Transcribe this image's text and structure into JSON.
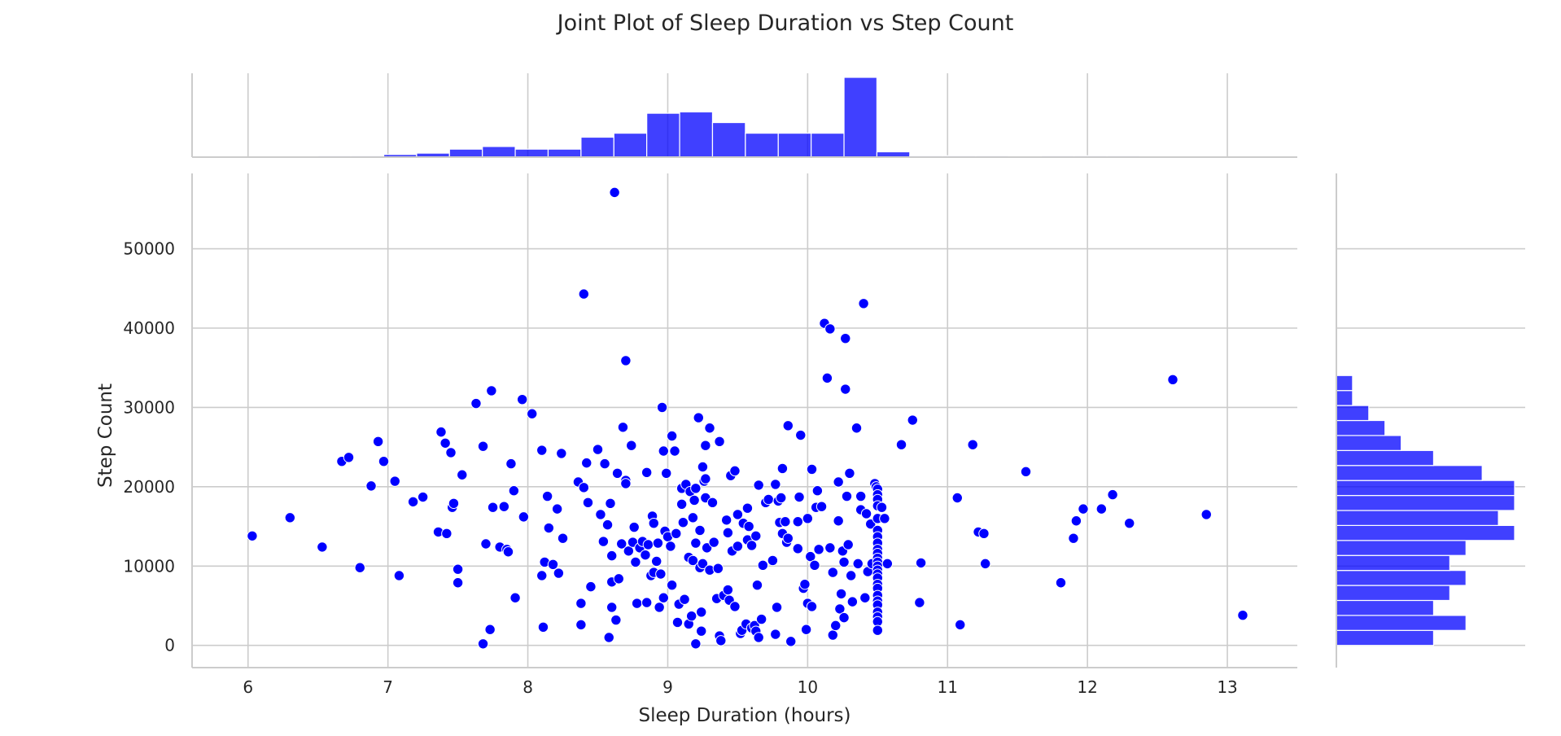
{
  "chart_data": {
    "type": "scatter",
    "title": "Joint Plot of Sleep Duration vs Step Count",
    "xlabel": "Sleep Duration (hours)",
    "ylabel": "Step Count",
    "xlim": [
      5.6,
      13.5
    ],
    "ylim": [
      -2800,
      59500
    ],
    "x_ticks": [
      6,
      7,
      8,
      9,
      10,
      11,
      12,
      13
    ],
    "y_ticks": [
      0,
      10000,
      20000,
      30000,
      40000,
      50000
    ],
    "grid": true,
    "color": "#0000ff",
    "marginal_x_histogram": {
      "bin_start": 6.5,
      "bin_width": 0.235,
      "counts": [
        1,
        1,
        2,
        3,
        6,
        8,
        6,
        6,
        15,
        18,
        33,
        34,
        26,
        18,
        18,
        18,
        60,
        4,
        1,
        1,
        1,
        0,
        1,
        1,
        1
      ]
    },
    "marginal_y_histogram": {
      "bin_start": 0,
      "bin_width": 1890,
      "counts": [
        6,
        8,
        6,
        7,
        8,
        7,
        8,
        11,
        10,
        11,
        11,
        9,
        6,
        4,
        3,
        2,
        1,
        1,
        0,
        0,
        0,
        0,
        0,
        0,
        0,
        0,
        0,
        0,
        0,
        0
      ]
    },
    "points": [
      [
        6.03,
        13800
      ],
      [
        6.3,
        16100
      ],
      [
        6.53,
        12400
      ],
      [
        6.67,
        23200
      ],
      [
        6.72,
        23700
      ],
      [
        6.8,
        9800
      ],
      [
        6.88,
        20100
      ],
      [
        6.93,
        25700
      ],
      [
        6.97,
        23200
      ],
      [
        7.05,
        20700
      ],
      [
        7.08,
        8800
      ],
      [
        7.18,
        18100
      ],
      [
        7.25,
        18700
      ],
      [
        7.36,
        14300
      ],
      [
        7.38,
        26900
      ],
      [
        7.41,
        25500
      ],
      [
        7.42,
        14100
      ],
      [
        7.45,
        24300
      ],
      [
        7.46,
        17400
      ],
      [
        7.47,
        17900
      ],
      [
        7.5,
        9600
      ],
      [
        7.5,
        7900
      ],
      [
        7.53,
        21500
      ],
      [
        7.63,
        30500
      ],
      [
        7.68,
        25100
      ],
      [
        7.68,
        200
      ],
      [
        7.7,
        12800
      ],
      [
        7.73,
        2000
      ],
      [
        7.74,
        32100
      ],
      [
        7.75,
        17400
      ],
      [
        7.8,
        12400
      ],
      [
        7.83,
        17500
      ],
      [
        7.85,
        12100
      ],
      [
        7.86,
        11800
      ],
      [
        7.88,
        22900
      ],
      [
        7.9,
        19500
      ],
      [
        7.91,
        6000
      ],
      [
        7.96,
        31000
      ],
      [
        7.97,
        16200
      ],
      [
        8.03,
        29200
      ],
      [
        8.1,
        24600
      ],
      [
        8.1,
        8800
      ],
      [
        8.11,
        2300
      ],
      [
        8.12,
        10500
      ],
      [
        8.14,
        18800
      ],
      [
        8.15,
        14800
      ],
      [
        8.18,
        10200
      ],
      [
        8.21,
        17200
      ],
      [
        8.22,
        9100
      ],
      [
        8.24,
        24200
      ],
      [
        8.25,
        13500
      ],
      [
        8.36,
        20600
      ],
      [
        8.38,
        5300
      ],
      [
        8.38,
        2600
      ],
      [
        8.4,
        19900
      ],
      [
        8.4,
        44300
      ],
      [
        8.42,
        23000
      ],
      [
        8.43,
        18000
      ],
      [
        8.45,
        7400
      ],
      [
        8.5,
        24700
      ],
      [
        8.52,
        16500
      ],
      [
        8.54,
        13100
      ],
      [
        8.55,
        22900
      ],
      [
        8.57,
        15200
      ],
      [
        8.58,
        1000
      ],
      [
        8.59,
        17900
      ],
      [
        8.6,
        11300
      ],
      [
        8.62,
        57100
      ],
      [
        8.6,
        4800
      ],
      [
        8.6,
        8000
      ],
      [
        8.63,
        3200
      ],
      [
        8.64,
        21700
      ],
      [
        8.65,
        8400
      ],
      [
        8.67,
        12800
      ],
      [
        8.68,
        27500
      ],
      [
        8.7,
        20800
      ],
      [
        8.7,
        20400
      ],
      [
        8.7,
        35900
      ],
      [
        8.72,
        11900
      ],
      [
        8.74,
        25200
      ],
      [
        8.75,
        13000
      ],
      [
        8.76,
        14900
      ],
      [
        8.77,
        10500
      ],
      [
        8.78,
        5300
      ],
      [
        8.8,
        12300
      ],
      [
        8.82,
        13100
      ],
      [
        8.84,
        11400
      ],
      [
        8.85,
        21800
      ],
      [
        8.85,
        5400
      ],
      [
        8.86,
        12700
      ],
      [
        8.88,
        8800
      ],
      [
        8.89,
        16300
      ],
      [
        8.9,
        9200
      ],
      [
        8.9,
        15400
      ],
      [
        8.92,
        10600
      ],
      [
        8.93,
        12900
      ],
      [
        8.94,
        4800
      ],
      [
        8.95,
        9000
      ],
      [
        8.96,
        30000
      ],
      [
        8.97,
        6000
      ],
      [
        8.97,
        24500
      ],
      [
        8.98,
        14400
      ],
      [
        8.99,
        21700
      ],
      [
        9.0,
        13700
      ],
      [
        9.02,
        12500
      ],
      [
        9.03,
        7600
      ],
      [
        9.03,
        26400
      ],
      [
        9.05,
        24500
      ],
      [
        9.06,
        14100
      ],
      [
        9.07,
        2900
      ],
      [
        9.08,
        5200
      ],
      [
        9.1,
        19800
      ],
      [
        9.1,
        17800
      ],
      [
        9.11,
        15500
      ],
      [
        9.12,
        5800
      ],
      [
        9.13,
        20300
      ],
      [
        9.15,
        2700
      ],
      [
        9.15,
        11100
      ],
      [
        9.16,
        19400
      ],
      [
        9.17,
        3700
      ],
      [
        9.18,
        10700
      ],
      [
        9.18,
        16100
      ],
      [
        9.19,
        18300
      ],
      [
        9.2,
        12900
      ],
      [
        9.2,
        19800
      ],
      [
        9.2,
        200
      ],
      [
        9.22,
        28700
      ],
      [
        9.23,
        14500
      ],
      [
        9.23,
        9800
      ],
      [
        9.24,
        4200
      ],
      [
        9.24,
        1800
      ],
      [
        9.25,
        10300
      ],
      [
        9.25,
        22500
      ],
      [
        9.26,
        20700
      ],
      [
        9.27,
        18600
      ],
      [
        9.27,
        21000
      ],
      [
        9.27,
        25200
      ],
      [
        9.28,
        12300
      ],
      [
        9.3,
        27400
      ],
      [
        9.3,
        9500
      ],
      [
        9.32,
        18000
      ],
      [
        9.33,
        13000
      ],
      [
        9.35,
        5900
      ],
      [
        9.36,
        9700
      ],
      [
        9.37,
        25700
      ],
      [
        9.37,
        1200
      ],
      [
        9.38,
        600
      ],
      [
        9.4,
        6300
      ],
      [
        9.42,
        15800
      ],
      [
        9.43,
        7000
      ],
      [
        9.43,
        14200
      ],
      [
        9.44,
        5700
      ],
      [
        9.45,
        21400
      ],
      [
        9.46,
        11900
      ],
      [
        9.48,
        4900
      ],
      [
        9.48,
        22000
      ],
      [
        9.5,
        16500
      ],
      [
        9.5,
        12500
      ],
      [
        9.52,
        1500
      ],
      [
        9.53,
        1900
      ],
      [
        9.54,
        15400
      ],
      [
        9.56,
        2700
      ],
      [
        9.57,
        13300
      ],
      [
        9.57,
        17300
      ],
      [
        9.58,
        15000
      ],
      [
        9.6,
        2200
      ],
      [
        9.6,
        12600
      ],
      [
        9.62,
        2500
      ],
      [
        9.63,
        1800
      ],
      [
        9.63,
        13800
      ],
      [
        9.64,
        7600
      ],
      [
        9.65,
        20200
      ],
      [
        9.65,
        1000
      ],
      [
        9.67,
        3300
      ],
      [
        9.68,
        10100
      ],
      [
        9.7,
        18000
      ],
      [
        9.72,
        18400
      ],
      [
        9.75,
        10700
      ],
      [
        9.77,
        1400
      ],
      [
        9.77,
        20300
      ],
      [
        9.78,
        4800
      ],
      [
        9.79,
        18200
      ],
      [
        9.8,
        15500
      ],
      [
        9.81,
        18600
      ],
      [
        9.82,
        22300
      ],
      [
        9.82,
        14100
      ],
      [
        9.84,
        15600
      ],
      [
        9.85,
        13000
      ],
      [
        9.86,
        27700
      ],
      [
        9.86,
        13500
      ],
      [
        9.88,
        500
      ],
      [
        9.93,
        15600
      ],
      [
        9.93,
        12200
      ],
      [
        9.94,
        18700
      ],
      [
        9.95,
        26500
      ],
      [
        9.97,
        7200
      ],
      [
        9.98,
        7700
      ],
      [
        9.99,
        2000
      ],
      [
        10.0,
        16000
      ],
      [
        10.0,
        5300
      ],
      [
        10.02,
        11200
      ],
      [
        10.03,
        22200
      ],
      [
        10.03,
        4900
      ],
      [
        10.05,
        10100
      ],
      [
        10.06,
        17400
      ],
      [
        10.07,
        19500
      ],
      [
        10.08,
        12100
      ],
      [
        10.1,
        17500
      ],
      [
        10.12,
        40600
      ],
      [
        10.14,
        33700
      ],
      [
        10.16,
        39900
      ],
      [
        10.16,
        12300
      ],
      [
        10.18,
        1300
      ],
      [
        10.18,
        9200
      ],
      [
        10.2,
        2500
      ],
      [
        10.22,
        15700
      ],
      [
        10.22,
        20600
      ],
      [
        10.23,
        4600
      ],
      [
        10.24,
        6500
      ],
      [
        10.25,
        11900
      ],
      [
        10.26,
        10500
      ],
      [
        10.26,
        3500
      ],
      [
        10.27,
        32300
      ],
      [
        10.27,
        38700
      ],
      [
        10.28,
        18800
      ],
      [
        10.29,
        12700
      ],
      [
        10.3,
        21700
      ],
      [
        10.31,
        8800
      ],
      [
        10.32,
        5500
      ],
      [
        10.35,
        27400
      ],
      [
        10.36,
        10300
      ],
      [
        10.38,
        18800
      ],
      [
        10.38,
        17100
      ],
      [
        10.4,
        43100
      ],
      [
        10.41,
        6000
      ],
      [
        10.42,
        16600
      ],
      [
        10.43,
        9300
      ],
      [
        10.45,
        15300
      ],
      [
        10.46,
        10300
      ],
      [
        10.48,
        20400
      ],
      [
        10.49,
        20000
      ],
      [
        10.5,
        19700
      ],
      [
        10.5,
        19000
      ],
      [
        10.5,
        18400
      ],
      [
        10.5,
        17600
      ],
      [
        10.5,
        16000
      ],
      [
        10.5,
        14500
      ],
      [
        10.5,
        13700
      ],
      [
        10.5,
        12900
      ],
      [
        10.5,
        12100
      ],
      [
        10.5,
        11600
      ],
      [
        10.5,
        11000
      ],
      [
        10.5,
        10500
      ],
      [
        10.5,
        10000
      ],
      [
        10.5,
        9500
      ],
      [
        10.5,
        9000
      ],
      [
        10.5,
        8500
      ],
      [
        10.5,
        7700
      ],
      [
        10.5,
        7200
      ],
      [
        10.5,
        6300
      ],
      [
        10.5,
        5600
      ],
      [
        10.5,
        5100
      ],
      [
        10.5,
        4200
      ],
      [
        10.5,
        3600
      ],
      [
        10.5,
        3000
      ],
      [
        10.5,
        1900
      ],
      [
        10.53,
        17400
      ],
      [
        10.55,
        16000
      ],
      [
        10.57,
        10300
      ],
      [
        10.67,
        25300
      ],
      [
        10.75,
        28400
      ],
      [
        10.8,
        5400
      ],
      [
        10.81,
        10400
      ],
      [
        11.07,
        18600
      ],
      [
        11.09,
        2600
      ],
      [
        11.18,
        25300
      ],
      [
        11.22,
        14300
      ],
      [
        11.26,
        14100
      ],
      [
        11.27,
        10300
      ],
      [
        11.56,
        21900
      ],
      [
        11.81,
        7900
      ],
      [
        11.9,
        13500
      ],
      [
        11.92,
        15700
      ],
      [
        11.97,
        17200
      ],
      [
        12.1,
        17200
      ],
      [
        12.18,
        19000
      ],
      [
        12.3,
        15400
      ],
      [
        12.61,
        33500
      ],
      [
        12.85,
        16500
      ],
      [
        13.11,
        3800
      ]
    ]
  }
}
